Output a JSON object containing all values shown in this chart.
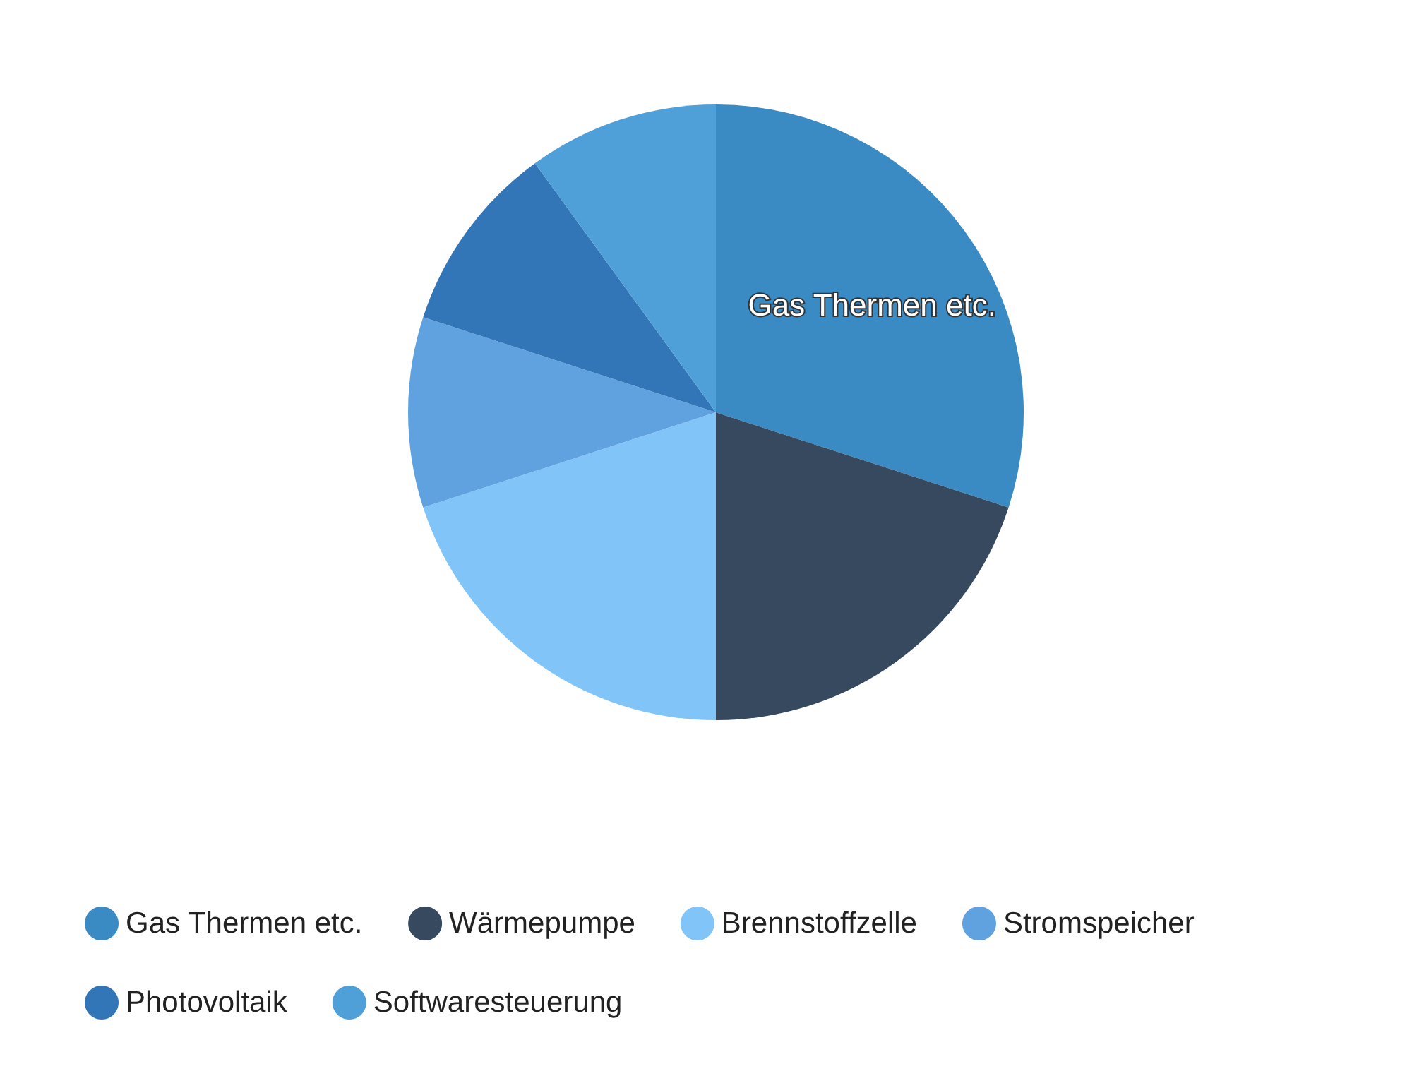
{
  "chart_data": {
    "type": "pie",
    "categories": [
      "Gas Thermen etc.",
      "Wärmepumpe",
      "Brennstoffzelle",
      "Stromspeicher",
      "Photovoltaik",
      "Softwaresteuerung"
    ],
    "values": [
      30,
      20,
      20,
      10,
      10,
      10
    ],
    "colors": [
      "#3a8ac4",
      "#37495f",
      "#80c4f8",
      "#60a2e0",
      "#3276b8",
      "#4f9fd9"
    ],
    "annotations": [
      "Gas Thermen etc."
    ],
    "legend": "bottom"
  }
}
